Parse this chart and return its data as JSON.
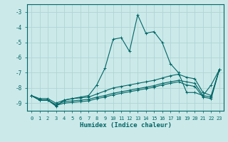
{
  "xlabel": "Humidex (Indice chaleur)",
  "bg_color": "#cce9e9",
  "grid_color": "#b0d4d4",
  "line_color": "#006666",
  "xlim": [
    -0.5,
    23.5
  ],
  "ylim": [
    -9.5,
    -2.5
  ],
  "yticks": [
    -9,
    -8,
    -7,
    -6,
    -5,
    -4,
    -3
  ],
  "xticks": [
    0,
    1,
    2,
    3,
    4,
    5,
    6,
    7,
    8,
    9,
    10,
    11,
    12,
    13,
    14,
    15,
    16,
    17,
    18,
    19,
    20,
    21,
    22,
    23
  ],
  "lines": [
    {
      "x": [
        0,
        1,
        2,
        3,
        4,
        5,
        6,
        7,
        8,
        9,
        10,
        11,
        12,
        13,
        14,
        15,
        16,
        17,
        18,
        19,
        20,
        21,
        22,
        23
      ],
      "y": [
        -8.5,
        -8.8,
        -8.8,
        -9.2,
        -8.8,
        -8.7,
        -8.6,
        -8.5,
        -7.8,
        -6.7,
        -4.8,
        -4.7,
        -5.6,
        -3.2,
        -4.4,
        -4.3,
        -5.0,
        -6.4,
        -7.0,
        -8.3,
        -8.3,
        -8.5,
        -7.8,
        -6.8
      ]
    },
    {
      "x": [
        0,
        1,
        2,
        3,
        4,
        5,
        6,
        7,
        8,
        9,
        10,
        11,
        12,
        13,
        14,
        15,
        16,
        17,
        18,
        19,
        20,
        21,
        22,
        23
      ],
      "y": [
        -8.5,
        -8.7,
        -8.7,
        -9.0,
        -8.8,
        -8.7,
        -8.65,
        -8.6,
        -8.4,
        -8.2,
        -8.0,
        -7.9,
        -7.8,
        -7.7,
        -7.6,
        -7.5,
        -7.35,
        -7.2,
        -7.1,
        -7.3,
        -7.4,
        -8.3,
        -8.5,
        -6.8
      ]
    },
    {
      "x": [
        0,
        1,
        2,
        3,
        4,
        5,
        6,
        7,
        8,
        9,
        10,
        11,
        12,
        13,
        14,
        15,
        16,
        17,
        18,
        19,
        20,
        21,
        22,
        23
      ],
      "y": [
        -8.5,
        -8.8,
        -8.8,
        -9.1,
        -8.9,
        -8.85,
        -8.8,
        -8.75,
        -8.6,
        -8.5,
        -8.35,
        -8.25,
        -8.15,
        -8.05,
        -7.95,
        -7.85,
        -7.7,
        -7.6,
        -7.5,
        -7.6,
        -7.7,
        -8.5,
        -8.6,
        -6.8
      ]
    },
    {
      "x": [
        0,
        1,
        2,
        3,
        4,
        5,
        6,
        7,
        8,
        9,
        10,
        11,
        12,
        13,
        14,
        15,
        16,
        17,
        18,
        19,
        20,
        21,
        22,
        23
      ],
      "y": [
        -8.5,
        -8.8,
        -8.8,
        -9.15,
        -9.0,
        -8.95,
        -8.9,
        -8.85,
        -8.7,
        -8.6,
        -8.45,
        -8.35,
        -8.25,
        -8.15,
        -8.05,
        -7.95,
        -7.8,
        -7.7,
        -7.6,
        -7.8,
        -7.9,
        -8.6,
        -8.7,
        -6.8
      ]
    }
  ]
}
